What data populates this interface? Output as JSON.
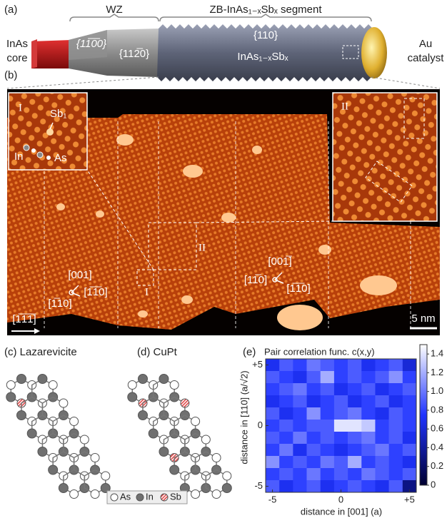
{
  "panel_a": {
    "label": "(a)",
    "wz": "WZ",
    "zb": "ZB-InAs₁₋ₓSbₓ segment",
    "core": [
      "InAs",
      "core"
    ],
    "facet_wz1": "{11̅0̅0}",
    "facet_wz2": "{112̅0}",
    "facet_zb": "{110}",
    "segment": "InAs₁₋ₓSbₓ",
    "catalyst": [
      "Au",
      "catalyst"
    ]
  },
  "panel_b": {
    "label": "(b)",
    "inset_1": {
      "label": "I",
      "sb": "Sb₁",
      "in": "In",
      "as": "As"
    },
    "inset_2": {
      "label": "II"
    },
    "box_1": "I",
    "box_2": "II",
    "dirs_left": [
      "[001]",
      "[1̅10]",
      "[1̅1̅0]"
    ],
    "dirs_right": [
      "[001̅]",
      "[11̅0]",
      "[1̅1̅0]"
    ],
    "growth_dir": "[1̅1̅1̅]",
    "scale": "5 nm"
  },
  "panel_c": {
    "label": "(c) Lazarevicite"
  },
  "panel_d": {
    "label": "(d) CuPt"
  },
  "legend": [
    "As",
    "In",
    "Sb"
  ],
  "panel_e": {
    "label": "(e)"
  },
  "chart_data": {
    "type": "heatmap",
    "title": "Pair correlation func. c(x,y)",
    "x_label": "distance in [001] (a)",
    "y_label": "distance in [110] (a/√2)",
    "x": [
      -5,
      -4,
      -3,
      -2,
      -1,
      0,
      1,
      2,
      3,
      4,
      5
    ],
    "y": [
      5,
      4,
      3,
      2,
      1,
      0,
      -1,
      -2,
      -3,
      -4,
      -5
    ],
    "values": [
      [
        0.7,
        0.9,
        0.8,
        1.0,
        0.9,
        0.8,
        0.9,
        0.7,
        0.8,
        0.9,
        0.6
      ],
      [
        0.9,
        0.8,
        0.7,
        0.9,
        1.2,
        0.8,
        0.9,
        0.8,
        0.9,
        1.1,
        0.8
      ],
      [
        0.8,
        0.9,
        1.0,
        0.8,
        0.9,
        0.7,
        0.8,
        0.9,
        0.7,
        0.8,
        0.9
      ],
      [
        0.7,
        0.8,
        0.9,
        0.7,
        0.8,
        0.9,
        0.7,
        0.8,
        0.9,
        0.7,
        0.8
      ],
      [
        0.9,
        0.7,
        0.8,
        1.1,
        0.8,
        0.9,
        1.0,
        0.8,
        0.7,
        0.9,
        0.8
      ],
      [
        0.8,
        0.9,
        0.8,
        0.9,
        0.9,
        1.4,
        1.4,
        1.3,
        0.8,
        0.9,
        0.8
      ],
      [
        0.9,
        0.8,
        1.0,
        0.8,
        0.9,
        0.8,
        0.9,
        1.0,
        0.8,
        0.9,
        0.7
      ],
      [
        0.8,
        1.0,
        0.7,
        0.9,
        0.8,
        0.7,
        0.8,
        0.9,
        1.0,
        0.8,
        0.9
      ],
      [
        1.1,
        0.8,
        0.9,
        0.8,
        1.0,
        0.9,
        1.2,
        0.8,
        0.9,
        0.8,
        0.7
      ],
      [
        0.8,
        0.9,
        0.8,
        1.0,
        0.8,
        0.9,
        0.8,
        1.0,
        0.9,
        0.8,
        0.9
      ],
      [
        0.9,
        0.7,
        0.8,
        0.9,
        0.7,
        0.8,
        0.9,
        0.8,
        0.7,
        0.9,
        0.3
      ]
    ],
    "xlim": [
      -5.5,
      5.5
    ],
    "ylim": [
      -5.5,
      5.5
    ],
    "xticks": [
      -5,
      0,
      {
        "value": 5,
        "label": "+5"
      }
    ],
    "yticks": [
      {
        "value": 5,
        "label": "+5"
      },
      0,
      -5
    ],
    "clim": [
      0,
      1.5
    ],
    "cticks": [
      0,
      0.2,
      0.4,
      0.6,
      0.8,
      {
        "value": 1,
        "label": "1.0"
      },
      1.2,
      1.4
    ],
    "colormap": [
      "#000030",
      "#1f33ff",
      "#ffffff"
    ]
  }
}
